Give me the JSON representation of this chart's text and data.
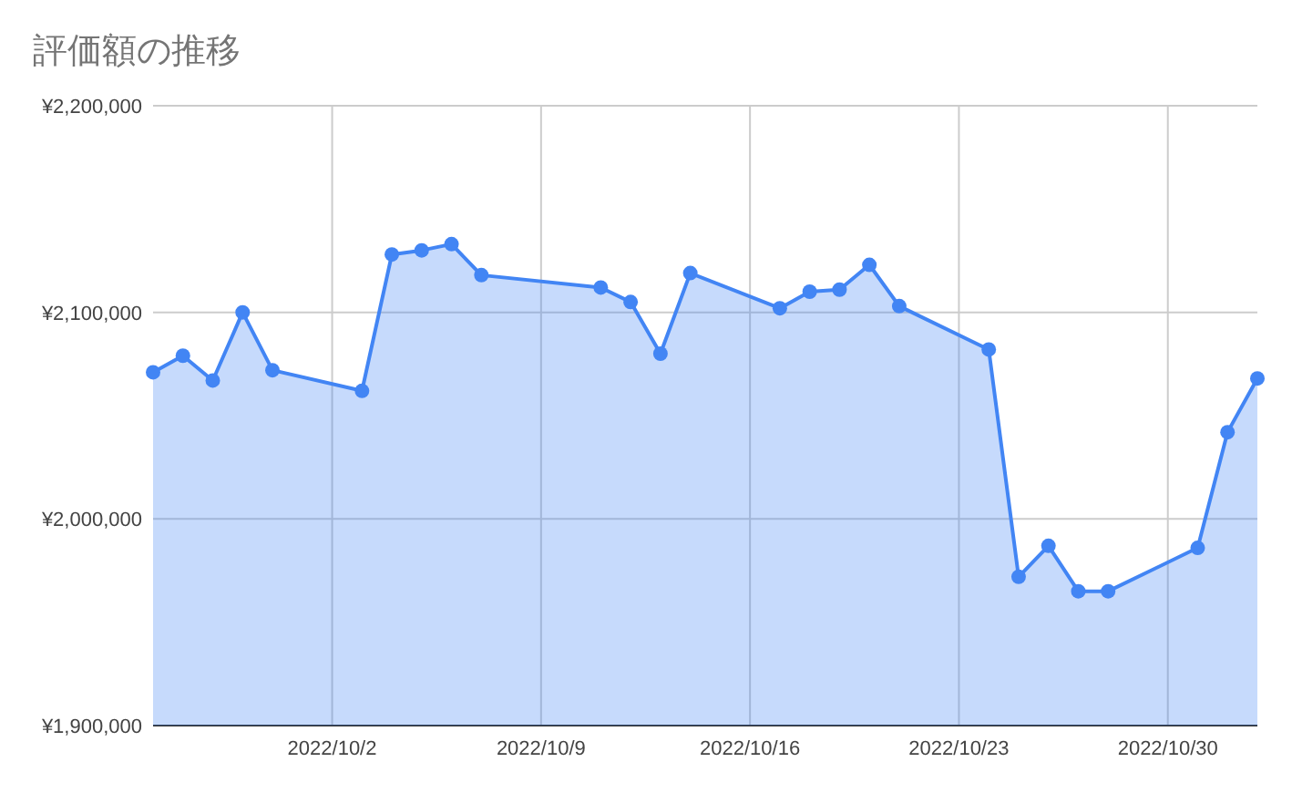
{
  "chart_data": {
    "type": "area",
    "title": "評価額の推移",
    "color": "#4285f4",
    "marker": "circle",
    "grid": true,
    "x": [
      "2022-09-26",
      "2022-09-27",
      "2022-09-28",
      "2022-09-29",
      "2022-09-30",
      "2022-10-03",
      "2022-10-04",
      "2022-10-05",
      "2022-10-06",
      "2022-10-07",
      "2022-10-11",
      "2022-10-12",
      "2022-10-13",
      "2022-10-14",
      "2022-10-17",
      "2022-10-18",
      "2022-10-19",
      "2022-10-20",
      "2022-10-21",
      "2022-10-24",
      "2022-10-25",
      "2022-10-26",
      "2022-10-27",
      "2022-10-28",
      "2022-10-31",
      "2022-11-01",
      "2022-11-02"
    ],
    "values": [
      2071000,
      2079000,
      2067000,
      2100000,
      2072000,
      2062000,
      2128000,
      2130000,
      2133000,
      2118000,
      2112000,
      2105000,
      2080000,
      2119000,
      2102000,
      2110000,
      2111000,
      2123000,
      2103000,
      2082000,
      1972000,
      1987000,
      1965000,
      1965000,
      1986000,
      2042000,
      2068000
    ],
    "xlim": [
      "2022-09-26",
      "2022-11-02"
    ],
    "xticks": [
      {
        "value": "2022-10-02",
        "label": "2022/10/2"
      },
      {
        "value": "2022-10-09",
        "label": "2022/10/9"
      },
      {
        "value": "2022-10-16",
        "label": "2022/10/16"
      },
      {
        "value": "2022-10-23",
        "label": "2022/10/23"
      },
      {
        "value": "2022-10-30",
        "label": "2022/10/30"
      }
    ],
    "ylim": [
      1900000,
      2200000
    ],
    "yticks": [
      {
        "value": 1900000,
        "label": "¥1,900,000"
      },
      {
        "value": 2000000,
        "label": "¥2,000,000"
      },
      {
        "value": 2100000,
        "label": "¥2,100,000"
      },
      {
        "value": 2200000,
        "label": "¥2,200,000"
      }
    ]
  }
}
